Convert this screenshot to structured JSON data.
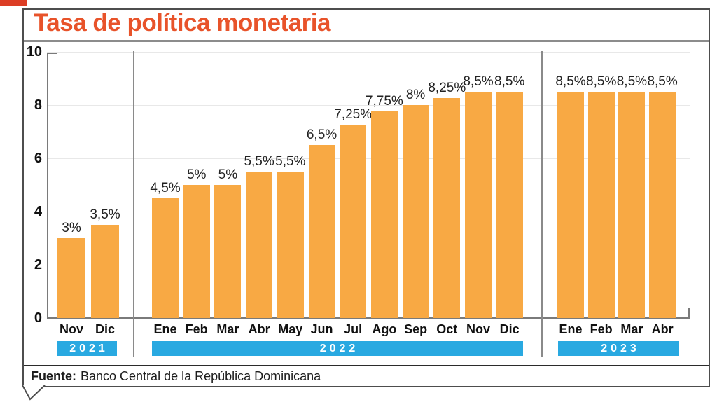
{
  "page": {
    "corner_mark": "red-corner-strip"
  },
  "source": {
    "label": "Fuente:",
    "text": "Banco Central de la República Dominicana"
  },
  "colors": {
    "bar": "#F8A944",
    "year_band": "#29A9E1",
    "title": "#E8532A"
  },
  "chart_data": {
    "type": "bar",
    "title": "Tasa de política monetaria",
    "ylabel": "",
    "xlabel": "",
    "unit": "%",
    "ylim": [
      0,
      10
    ],
    "yticks": [
      0,
      2,
      4,
      6,
      8,
      10
    ],
    "grid": true,
    "legend": "none",
    "source": "Fuente: Banco Central de la República Dominicana",
    "groups": [
      {
        "year": "2021",
        "months": [
          "Nov",
          "Dic"
        ],
        "values": [
          3,
          3.5
        ],
        "labels": [
          "3%",
          "3,5%"
        ]
      },
      {
        "year": "2022",
        "months": [
          "Ene",
          "Feb",
          "Mar",
          "Abr",
          "May",
          "Jun",
          "Jul",
          "Ago",
          "Sep",
          "Oct",
          "Nov",
          "Dic"
        ],
        "values": [
          4.5,
          5,
          5,
          5.5,
          5.5,
          6.5,
          7.25,
          7.75,
          8,
          8.25,
          8.5,
          8.5
        ],
        "labels": [
          "4,5%",
          "5%",
          "5%",
          "5,5%",
          "5,5%",
          "6,5%",
          "7,25%",
          "7,75%",
          "8%",
          "8,25%",
          "8,5%",
          "8,5%"
        ]
      },
      {
        "year": "2023",
        "months": [
          "Ene",
          "Feb",
          "Mar",
          "Abr"
        ],
        "values": [
          8.5,
          8.5,
          8.5,
          8.5
        ],
        "labels": [
          "8,5%",
          "8,5%",
          "8,5%",
          "8,5%"
        ]
      }
    ]
  }
}
